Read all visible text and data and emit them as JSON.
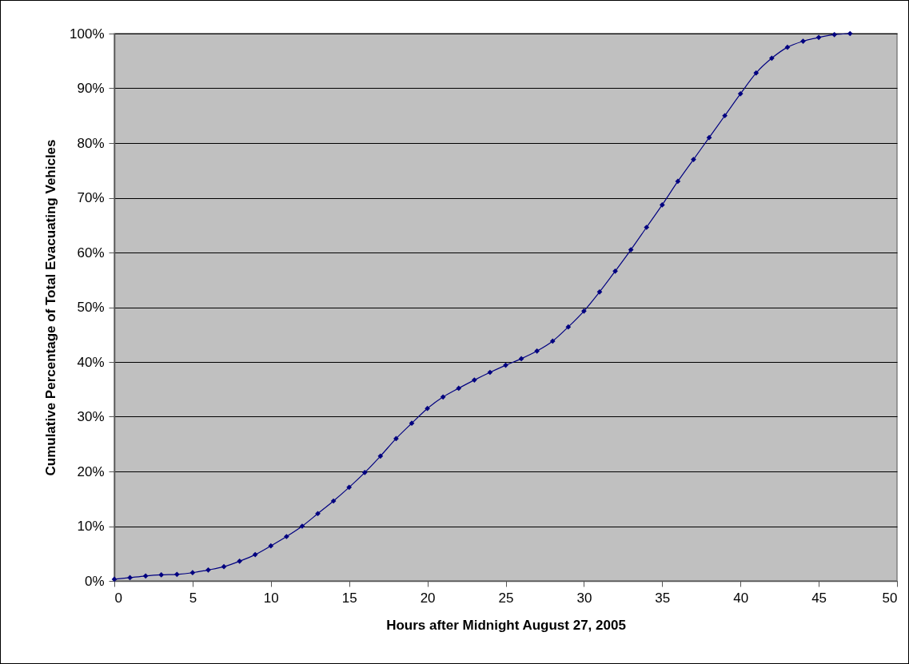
{
  "chart_data": {
    "type": "line",
    "xlabel": "Hours after Midnight August 27, 2005",
    "ylabel": "Cumulative Percentage of Total Evacuating Vehicles",
    "x": [
      0,
      1,
      2,
      3,
      4,
      5,
      6,
      7,
      8,
      9,
      10,
      11,
      12,
      13,
      14,
      15,
      16,
      17,
      18,
      19,
      20,
      21,
      22,
      23,
      24,
      25,
      26,
      27,
      28,
      29,
      30,
      31,
      32,
      33,
      34,
      35,
      36,
      37,
      38,
      39,
      40,
      41,
      42,
      43,
      44,
      45,
      46,
      47
    ],
    "series": [
      {
        "color": "#000080",
        "values": [
          0.3,
          0.6,
          0.9,
          1.1,
          1.2,
          1.5,
          2.0,
          2.6,
          3.6,
          4.8,
          6.4,
          8.1,
          10.0,
          12.3,
          14.6,
          17.1,
          19.8,
          22.8,
          26.0,
          28.8,
          31.5,
          33.6,
          35.2,
          36.7,
          38.1,
          39.4,
          40.6,
          42.0,
          43.8,
          46.4,
          49.3,
          52.8,
          56.6,
          60.5,
          64.6,
          68.7,
          73.0,
          77.0,
          81.0,
          85.0,
          89.0,
          92.8,
          95.5,
          97.5,
          98.6,
          99.3,
          99.8,
          100
        ]
      }
    ],
    "xlim": [
      0,
      50
    ],
    "xticks": [
      0,
      5,
      10,
      15,
      20,
      25,
      30,
      35,
      40,
      45,
      50
    ],
    "ylim": [
      0,
      100
    ],
    "yticks": [
      {
        "value": 0,
        "label": "0%"
      },
      {
        "value": 10,
        "label": "10%"
      },
      {
        "value": 20,
        "label": "20%"
      },
      {
        "value": 30,
        "label": "30%"
      },
      {
        "value": 40,
        "label": "40%"
      },
      {
        "value": 50,
        "label": "50%"
      },
      {
        "value": 60,
        "label": "60%"
      },
      {
        "value": 70,
        "label": "70%"
      },
      {
        "value": 80,
        "label": "80%"
      },
      {
        "value": 90,
        "label": "90%"
      },
      {
        "value": 100,
        "label": "100%"
      }
    ],
    "grid": "y",
    "marker": "diamond",
    "line_style": "solid",
    "legend": false
  }
}
